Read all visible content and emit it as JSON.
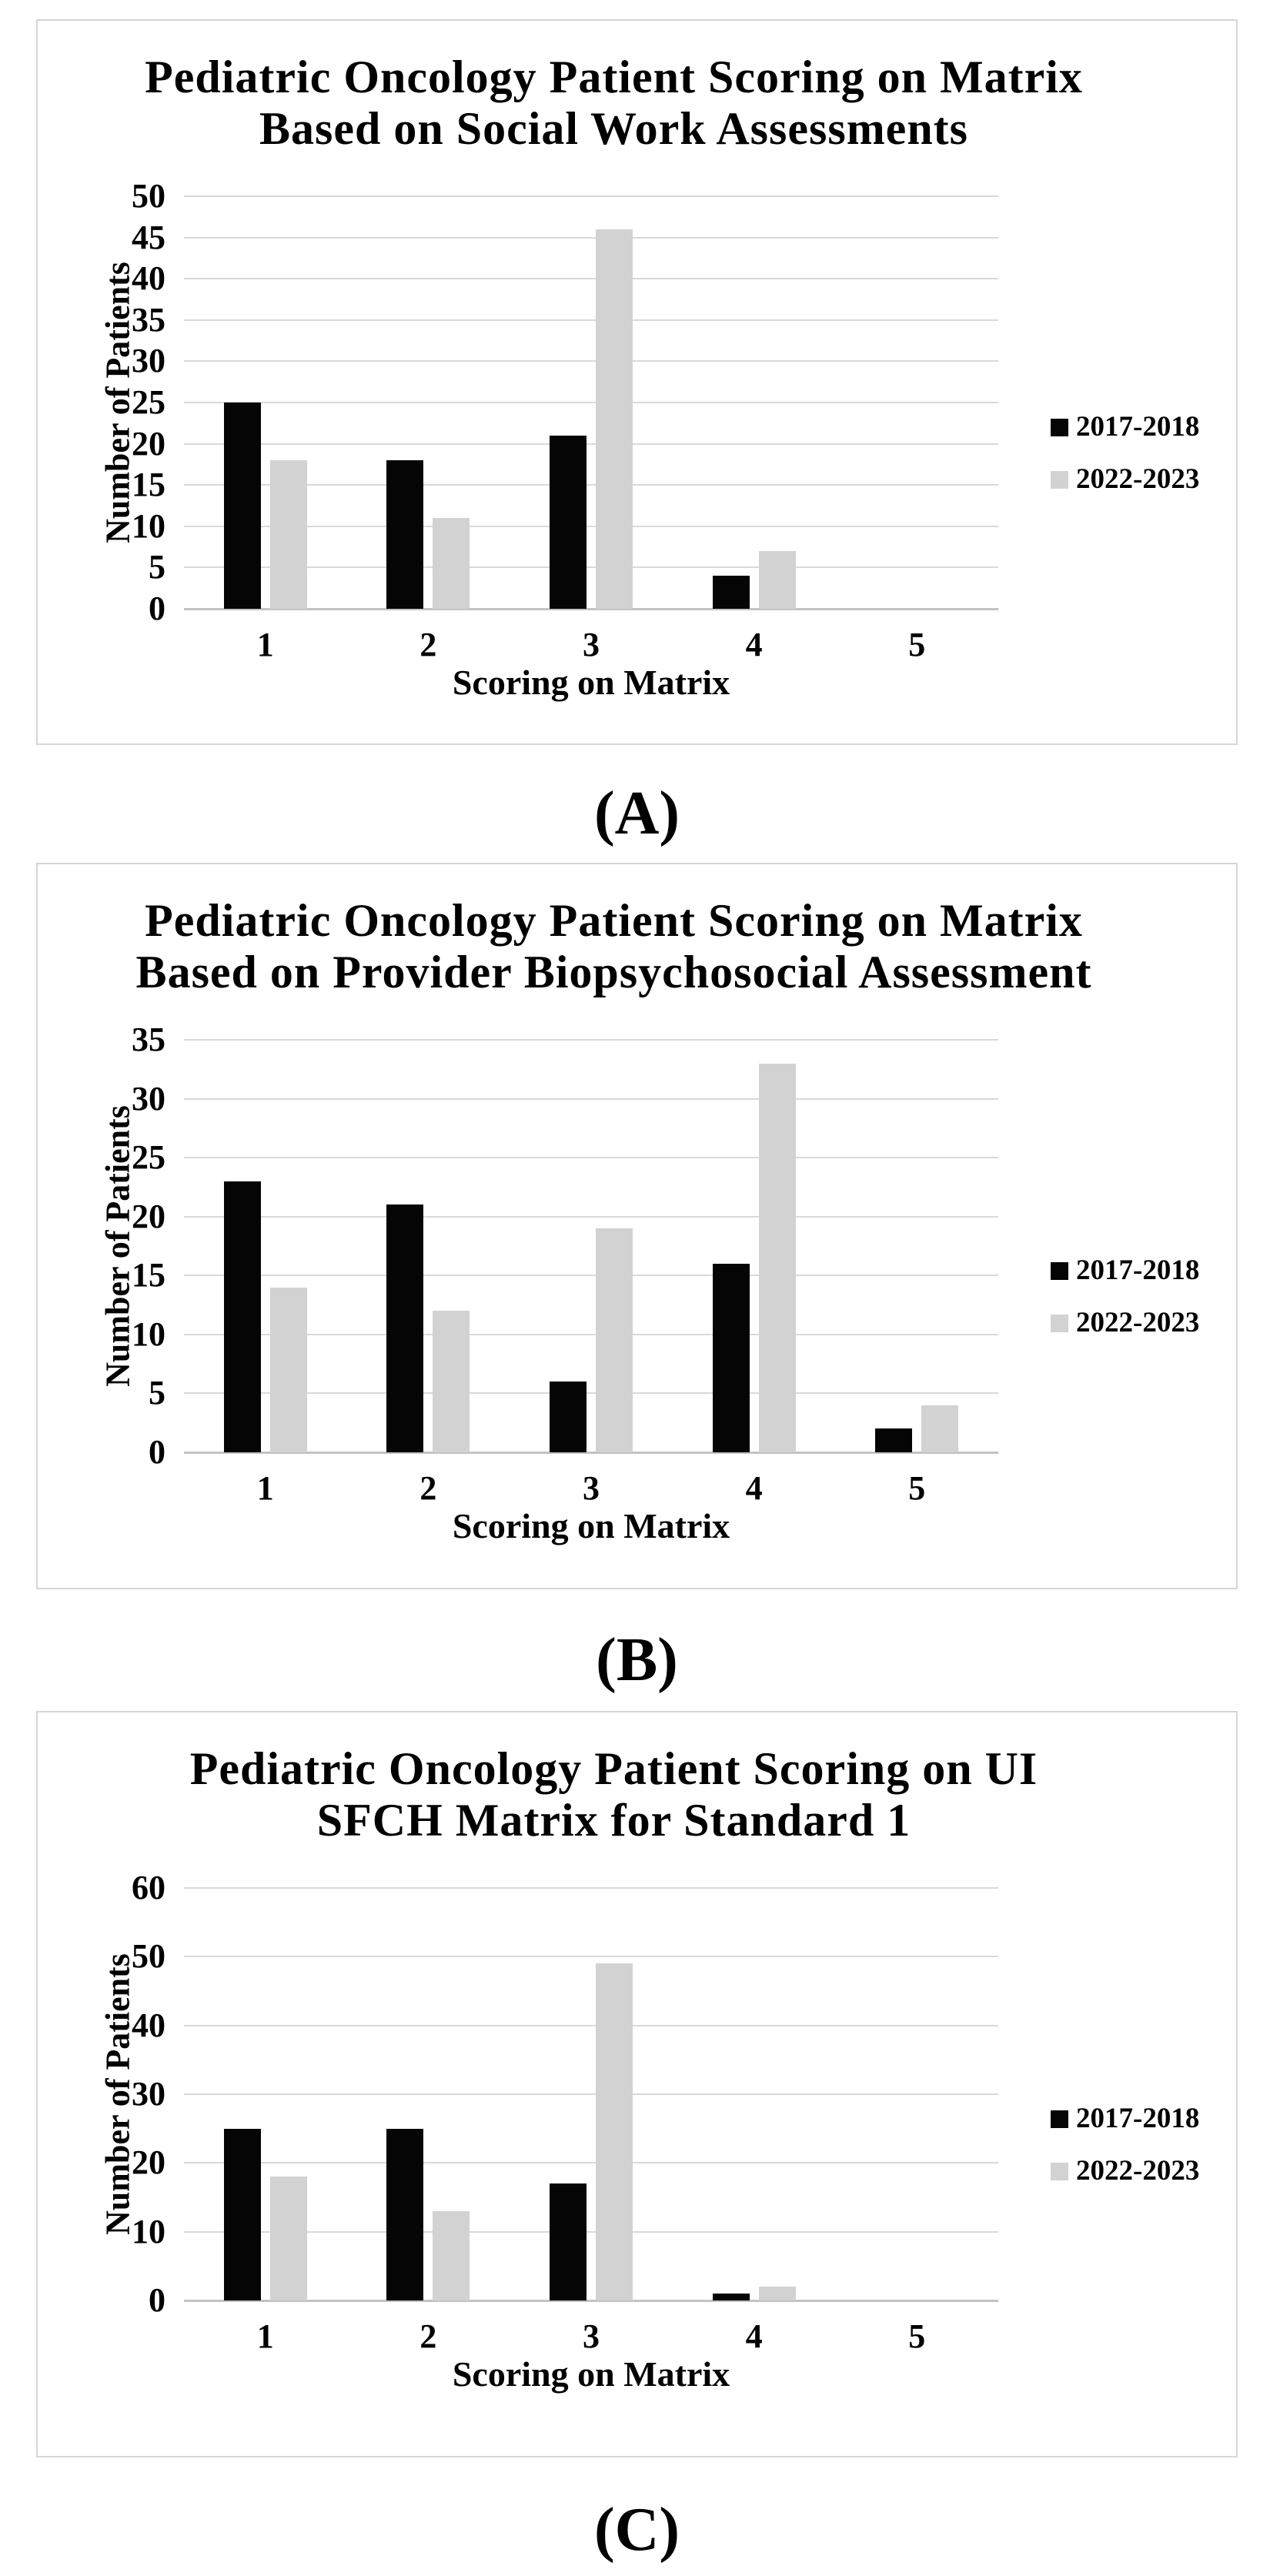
{
  "figure": {
    "captions": [
      "(A)",
      "(B)",
      "(C)"
    ],
    "background": "#ffffff"
  },
  "colors": {
    "series_black": "#050505",
    "series_gray": "#d2d2d2",
    "gridline": "#d9d9d9",
    "axis_line": "#c3c3c3",
    "panel_border": "#d6d6d6",
    "text": "#000000"
  },
  "chart_data": [
    {
      "type": "bar",
      "title": "Pediatric Oncology Patient Scoring on Matrix Based on Social Work Assessments",
      "title_lines": [
        "Pediatric Oncology Patient Scoring on Matrix",
        "Based on Social Work Assessments"
      ],
      "xlabel": "Scoring on Matrix",
      "ylabel": "Number of Patients",
      "categories": [
        "1",
        "2",
        "3",
        "4",
        "5"
      ],
      "series": [
        {
          "name": "2017-2018",
          "color": "#050505",
          "values": [
            25,
            18,
            21,
            4,
            0
          ]
        },
        {
          "name": "2022-2023",
          "color": "#d2d2d2",
          "values": [
            18,
            11,
            46,
            7,
            0
          ]
        }
      ],
      "ylim": [
        0,
        50
      ],
      "ytick_step": 5,
      "grid": true,
      "legend_position": "right"
    },
    {
      "type": "bar",
      "title": "Pediatric Oncology Patient Scoring on Matrix Based on Provider Biopsychosocial Assessment",
      "title_lines": [
        "Pediatric Oncology Patient Scoring on Matrix",
        "Based on Provider Biopsychosocial Assessment"
      ],
      "xlabel": "Scoring on Matrix",
      "ylabel": "Number of Patients",
      "categories": [
        "1",
        "2",
        "3",
        "4",
        "5"
      ],
      "series": [
        {
          "name": "2017-2018",
          "color": "#050505",
          "values": [
            23,
            21,
            6,
            16,
            2
          ]
        },
        {
          "name": "2022-2023",
          "color": "#d2d2d2",
          "values": [
            14,
            12,
            19,
            33,
            4
          ]
        }
      ],
      "ylim": [
        0,
        35
      ],
      "ytick_step": 5,
      "grid": true,
      "legend_position": "right"
    },
    {
      "type": "bar",
      "title": "Pediatric Oncology Patient Scoring on UI SFCH Matrix for Standard 1",
      "title_lines": [
        "Pediatric Oncology Patient Scoring on UI",
        "SFCH Matrix for Standard 1"
      ],
      "xlabel": "Scoring on Matrix",
      "ylabel": "Number of Patients",
      "categories": [
        "1",
        "2",
        "3",
        "4",
        "5"
      ],
      "series": [
        {
          "name": "2017-2018",
          "color": "#050505",
          "values": [
            25,
            25,
            17,
            1,
            0
          ]
        },
        {
          "name": "2022-2023",
          "color": "#d2d2d2",
          "values": [
            18,
            13,
            49,
            2,
            0
          ]
        }
      ],
      "ylim": [
        0,
        60
      ],
      "ytick_step": 10,
      "grid": true,
      "legend_position": "right"
    }
  ]
}
